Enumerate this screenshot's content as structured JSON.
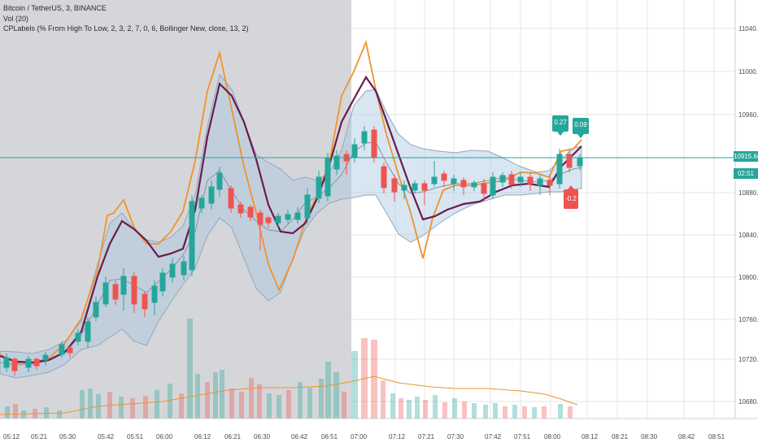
{
  "legend": {
    "symbol": "Bitcoin / TetherUS, 3, BINANCE",
    "volume": "Vol (20)",
    "indicator": "CPLabels (% From High To Low, 2, 3, 2, 7, 0, 6, Bollinger New, close, 13, 2)"
  },
  "price_axis": {
    "ticks": [
      "11040.00",
      "11000.00",
      "10960.00",
      "10880.00",
      "10840.00",
      "10800.00",
      "10760.00",
      "10720.00",
      "10680.00"
    ],
    "current_price": "10915.64",
    "countdown": "02:51"
  },
  "time_axis": {
    "ticks": [
      "05:12",
      "05:21",
      "05:30",
      "05:42",
      "05:51",
      "06:00",
      "06:12",
      "06:21",
      "06:30",
      "06:42",
      "06:51",
      "07:00",
      "07:12",
      "07:21",
      "07:30",
      "07:42",
      "07:51",
      "08:00",
      "08:12",
      "08:21",
      "08:30",
      "08:42",
      "08:51"
    ]
  },
  "labels": {
    "green_1": "0.27",
    "green_2": "0.09",
    "red_1": "-0.2"
  },
  "colors": {
    "up": "#26a69a",
    "down": "#ef5350",
    "band": "#a9c7e3",
    "upper_line": "#f0932b",
    "avg_line": "#6a1b4d",
    "shade": "#d5d6d9",
    "price_line": "#26a69a"
  }
}
